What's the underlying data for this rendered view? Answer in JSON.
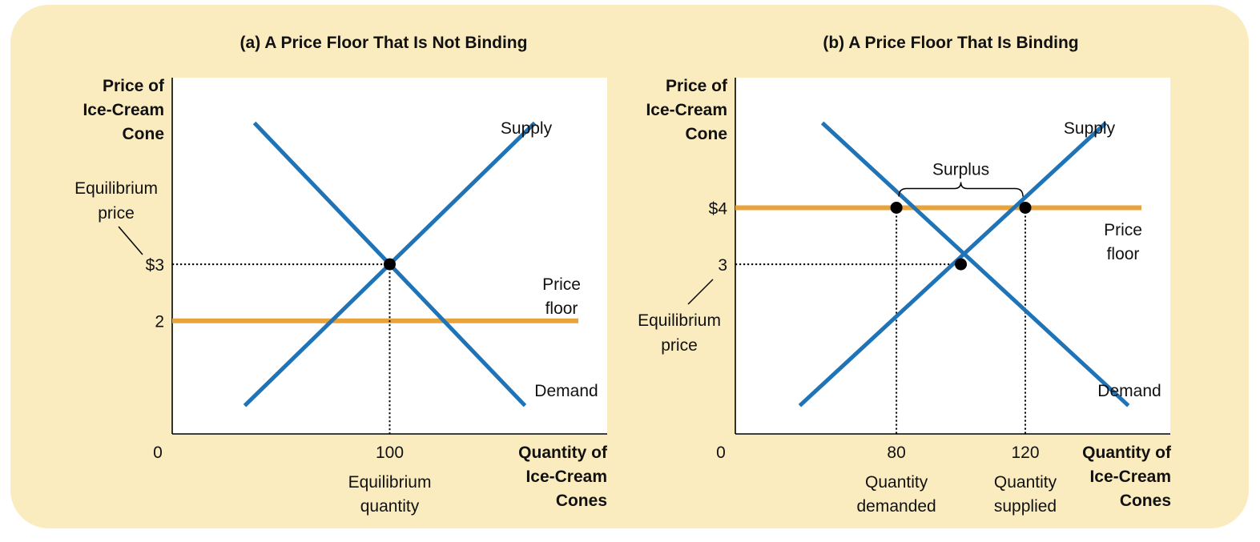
{
  "colors": {
    "background": "#fbecc0",
    "plot": "#ffffff",
    "curve": "#1f73b7",
    "floor": "#e8a33a",
    "dot": "#000000"
  },
  "chart_data": [
    {
      "type": "line",
      "title": "(a) A Price Floor That Is Not Binding",
      "ylabel": [
        "Price of",
        "Ice-Cream",
        "Cone"
      ],
      "xlabel": [
        "Quantity of",
        "Ice-Cream",
        "Cones"
      ],
      "origin_label": "0",
      "y_ticks": [
        {
          "value": 3,
          "label": "$3"
        },
        {
          "value": 2,
          "label": "2"
        }
      ],
      "x_ticks": [
        {
          "value": 100,
          "label": "100"
        }
      ],
      "series": [
        {
          "name": "Supply",
          "points": [
            [
              70,
              0.5
            ],
            [
              130,
              5.5
            ]
          ]
        },
        {
          "name": "Demand",
          "points": [
            [
              72,
              5.5
            ],
            [
              128,
              0.5
            ]
          ]
        }
      ],
      "price_floor": {
        "value": 2,
        "label": [
          "Price",
          "floor"
        ]
      },
      "equilibrium": {
        "x": 100,
        "y": 3,
        "price_label": [
          "Equilibrium",
          "price"
        ],
        "quantity_label": [
          "Equilibrium",
          "quantity"
        ]
      }
    },
    {
      "type": "line",
      "title": "(b) A Price Floor That Is Binding",
      "ylabel": [
        "Price of",
        "Ice-Cream",
        "Cone"
      ],
      "xlabel": [
        "Quantity of",
        "Ice-Cream",
        "Cones"
      ],
      "origin_label": "0",
      "y_ticks": [
        {
          "value": 4,
          "label": "$4"
        },
        {
          "value": 3,
          "label": "3"
        }
      ],
      "x_ticks": [
        {
          "value": 80,
          "label": "80"
        },
        {
          "value": 120,
          "label": "120"
        }
      ],
      "series": [
        {
          "name": "Supply",
          "points": [
            [
              50,
              0.5
            ],
            [
              145,
              5.5
            ]
          ]
        },
        {
          "name": "Demand",
          "points": [
            [
              57,
              5.5
            ],
            [
              152,
              0.5
            ]
          ]
        }
      ],
      "price_floor": {
        "value": 4,
        "label": [
          "Price",
          "floor"
        ]
      },
      "equilibrium": {
        "x": 100,
        "y": 3,
        "price_label": [
          "Equilibrium",
          "price"
        ]
      },
      "floor_points": [
        {
          "x": 80,
          "y": 4,
          "label": [
            "Quantity",
            "demanded"
          ]
        },
        {
          "x": 120,
          "y": 4,
          "label": [
            "Quantity",
            "supplied"
          ]
        }
      ],
      "surplus_label": "Surplus"
    }
  ]
}
